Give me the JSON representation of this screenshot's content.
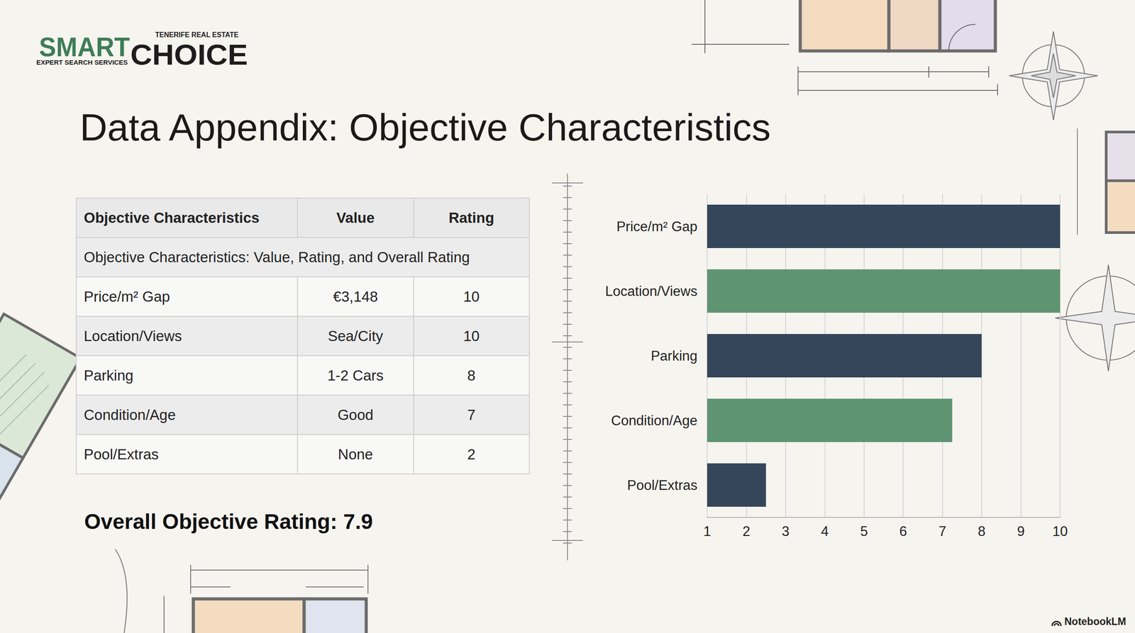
{
  "logo": {
    "word1": "SMART",
    "word2": "CHOICE",
    "tagline_top": "TENERIFE REAL ESTATE",
    "tagline_bottom": "EXPERT SEARCH SERVICES"
  },
  "title": "Data Appendix: Objective Characteristics",
  "table": {
    "header": [
      "Objective Characteristics",
      "Value",
      "Rating"
    ],
    "caption_row": "Objective Characteristics: Value, Rating, and Overall Rating",
    "rows": [
      [
        "Price/m² Gap",
        "€3,148",
        10
      ],
      [
        "Location/Views",
        "Sea/City",
        10
      ],
      [
        "Parking",
        "1-2 Cars",
        8
      ],
      [
        "Condition/Age",
        "Good",
        7
      ],
      [
        "Pool/Extras",
        "None",
        2
      ]
    ]
  },
  "overall": "Overall Objective Rating: 7.9",
  "chart_data": {
    "type": "bar",
    "orientation": "horizontal",
    "categories": [
      "Price/m² Gap",
      "Location/Views",
      "Parking",
      "Condition/Age",
      "Pool/Extras"
    ],
    "values": [
      10,
      10,
      8,
      7.25,
      2.5
    ],
    "colors": [
      "#36465a",
      "#5f9472",
      "#36465a",
      "#5f9472",
      "#36465a"
    ],
    "xlim": [
      1,
      10
    ],
    "xticks": [
      1,
      2,
      3,
      4,
      5,
      6,
      7,
      8,
      9,
      10
    ],
    "grid": true
  },
  "footer": "NotebookLM"
}
